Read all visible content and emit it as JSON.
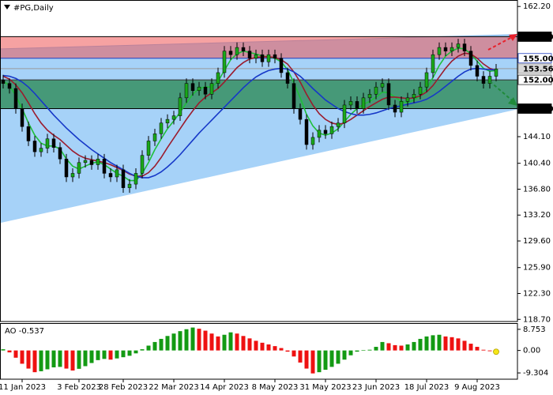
{
  "chart_data": [
    {
      "type": "candlestick",
      "title": "#PG,Daily",
      "categories": [
        null,
        null,
        null,
        "11 Jan 2023",
        null,
        null,
        null,
        null,
        null,
        null,
        null,
        null,
        "3 Feb 2023",
        null,
        null,
        null,
        null,
        null,
        null,
        "28 Feb 2023",
        null,
        null,
        null,
        null,
        null,
        null,
        null,
        "22 Mar 2023",
        null,
        null,
        null,
        null,
        null,
        null,
        null,
        "14 Apr 2023",
        null,
        null,
        null,
        null,
        null,
        null,
        null,
        "8 May 2023",
        null,
        null,
        null,
        null,
        null,
        null,
        null,
        "31 May 2023",
        null,
        null,
        null,
        null,
        null,
        null,
        null,
        "23 Jun 2023",
        null,
        null,
        null,
        null,
        null,
        null,
        null,
        "18 Jul 2023",
        null,
        null,
        null,
        null,
        null,
        null,
        null,
        "9 Aug 2023",
        null,
        null,
        null
      ],
      "open": [
        152.0,
        151.5,
        150.8,
        148.0,
        145.5,
        143.5,
        142.0,
        142.5,
        143.8,
        142.6,
        141.0,
        138.5,
        139.0,
        140.5,
        140.8,
        140.2,
        141.0,
        139.0,
        138.5,
        139.5,
        137.0,
        137.5,
        139.0,
        141.5,
        143.5,
        144.5,
        146.0,
        146.5,
        147.0,
        149.5,
        151.5,
        150.5,
        151.0,
        150.0,
        151.5,
        153.0,
        156.0,
        155.5,
        156.5,
        156.0,
        155.0,
        155.5,
        154.5,
        155.5,
        155.0,
        153.0,
        151.5,
        148.0,
        146.5,
        143.0,
        144.0,
        145.0,
        144.5,
        145.5,
        146.0,
        148.5,
        149.0,
        148.0,
        149.5,
        150.0,
        151.0,
        151.5,
        148.5,
        147.5,
        149.0,
        149.5,
        150.0,
        151.0,
        153.0,
        155.5,
        156.5,
        156.0,
        156.5,
        157.0,
        156.0,
        154.0,
        152.5,
        151.5,
        152.5
      ],
      "high": [
        152.7,
        152.2,
        151.5,
        148.7,
        146.2,
        144.2,
        143.2,
        144.5,
        144.5,
        143.3,
        141.7,
        139.7,
        141.2,
        141.5,
        141.5,
        141.7,
        141.7,
        139.7,
        140.2,
        140.2,
        138.2,
        139.7,
        142.2,
        144.2,
        145.2,
        146.7,
        147.2,
        147.7,
        150.2,
        152.2,
        152.2,
        151.7,
        151.7,
        152.2,
        153.7,
        156.7,
        156.7,
        157.2,
        157.2,
        156.7,
        156.2,
        156.2,
        156.2,
        156.2,
        155.7,
        153.7,
        152.2,
        148.7,
        147.2,
        144.7,
        145.7,
        145.7,
        146.2,
        146.7,
        149.2,
        149.7,
        149.7,
        150.2,
        150.7,
        151.7,
        152.2,
        152.2,
        149.2,
        149.7,
        150.2,
        150.7,
        151.7,
        153.7,
        156.2,
        157.2,
        157.2,
        157.2,
        157.7,
        157.7,
        156.7,
        154.7,
        153.2,
        153.2,
        154.2
      ],
      "low": [
        150.8,
        150.1,
        147.3,
        144.8,
        142.8,
        141.3,
        141.3,
        141.8,
        141.9,
        140.3,
        137.8,
        137.8,
        138.3,
        139.8,
        139.5,
        139.5,
        138.3,
        137.8,
        137.8,
        136.3,
        136.3,
        136.8,
        138.3,
        140.8,
        142.8,
        143.8,
        145.3,
        145.8,
        146.3,
        148.8,
        149.8,
        149.8,
        149.3,
        149.3,
        150.8,
        152.3,
        154.8,
        154.8,
        155.3,
        154.3,
        154.3,
        153.8,
        153.8,
        154.3,
        152.3,
        150.8,
        147.3,
        145.8,
        142.3,
        142.3,
        143.3,
        143.8,
        143.8,
        144.8,
        145.3,
        147.8,
        147.3,
        147.3,
        148.8,
        149.3,
        150.3,
        147.8,
        146.8,
        146.8,
        148.3,
        148.8,
        149.3,
        150.3,
        152.3,
        154.8,
        155.3,
        155.3,
        155.8,
        155.3,
        153.3,
        151.8,
        150.8,
        150.8,
        151.8
      ],
      "close": [
        151.5,
        150.8,
        148.0,
        145.5,
        143.5,
        142.0,
        142.5,
        143.8,
        142.6,
        141.0,
        138.5,
        139.0,
        140.5,
        140.8,
        140.2,
        141.0,
        139.0,
        138.5,
        139.5,
        137.0,
        137.5,
        139.0,
        141.5,
        143.5,
        144.5,
        146.0,
        146.5,
        147.0,
        149.5,
        151.5,
        150.5,
        151.0,
        150.0,
        151.5,
        153.0,
        156.0,
        155.5,
        156.5,
        156.0,
        155.0,
        155.5,
        154.5,
        155.5,
        155.0,
        153.0,
        151.5,
        148.0,
        146.5,
        143.0,
        144.0,
        145.0,
        144.5,
        145.5,
        146.0,
        148.5,
        149.0,
        148.0,
        149.5,
        150.0,
        151.0,
        151.5,
        148.5,
        147.5,
        149.0,
        149.5,
        150.0,
        151.0,
        153.0,
        155.5,
        156.5,
        156.0,
        156.5,
        157.0,
        156.0,
        154.0,
        152.5,
        151.5,
        152.5,
        153.5
      ],
      "up_color": "#1aa81a",
      "down_color": "#000000",
      "series": [
        {
          "color": "#1fbf3a",
          "values": [
            151.8,
            151.2,
            149.8,
            148.0,
            146.0,
            144.3,
            143.2,
            142.8,
            142.8,
            142.4,
            141.0,
            140.0,
            139.6,
            140.0,
            140.4,
            140.6,
            140.2,
            139.6,
            139.0,
            138.6,
            138.0,
            138.0,
            139.0,
            140.5,
            142.3,
            143.8,
            145.2,
            146.3,
            147.5,
            148.8,
            150.0,
            150.8,
            151.0,
            151.0,
            151.8,
            153.3,
            154.8,
            155.6,
            156.0,
            155.8,
            155.6,
            155.3,
            155.2,
            155.0,
            154.5,
            153.4,
            151.6,
            149.5,
            147.2,
            145.6,
            144.6,
            144.3,
            144.6,
            145.2,
            146.2,
            147.2,
            148.0,
            148.6,
            149.0,
            149.6,
            150.3,
            150.2,
            149.6,
            149.0,
            148.8,
            149.2,
            149.8,
            150.8,
            152.3,
            154.0,
            155.3,
            156.0,
            156.4,
            156.3,
            155.6,
            154.6,
            153.6,
            153.2,
            153.3
          ]
        },
        {
          "color": "#9b1c2e",
          "values": [
            152.5,
            152.1,
            151.3,
            150.2,
            148.8,
            147.3,
            146.0,
            145.0,
            144.3,
            143.7,
            142.9,
            142.1,
            141.5,
            141.1,
            140.9,
            140.7,
            140.5,
            140.2,
            139.8,
            139.4,
            138.9,
            138.6,
            138.6,
            139.1,
            140.0,
            141.2,
            142.6,
            143.9,
            145.2,
            146.5,
            147.7,
            148.8,
            149.6,
            150.2,
            150.8,
            151.7,
            152.7,
            153.7,
            154.4,
            154.9,
            155.1,
            155.2,
            155.2,
            155.1,
            154.8,
            154.2,
            153.1,
            151.7,
            150.0,
            148.5,
            147.3,
            146.5,
            146.0,
            145.8,
            146.0,
            146.5,
            147.1,
            147.7,
            148.3,
            148.8,
            149.3,
            149.6,
            149.6,
            149.5,
            149.4,
            149.5,
            149.8,
            150.3,
            151.2,
            152.4,
            153.6,
            154.6,
            155.3,
            155.7,
            155.6,
            155.0,
            154.2,
            153.6,
            153.3
          ]
        },
        {
          "color": "#1638c8",
          "values": [
            152.6,
            152.5,
            152.2,
            151.7,
            151.0,
            150.1,
            149.1,
            148.1,
            147.1,
            146.2,
            145.3,
            144.5,
            143.7,
            143.0,
            142.3,
            141.7,
            141.1,
            140.5,
            140.0,
            139.5,
            139.0,
            138.6,
            138.4,
            138.4,
            138.7,
            139.2,
            139.9,
            140.7,
            141.6,
            142.6,
            143.6,
            144.6,
            145.5,
            146.4,
            147.3,
            148.2,
            149.1,
            150.0,
            150.9,
            151.7,
            152.4,
            152.9,
            153.3,
            153.5,
            153.6,
            153.5,
            153.1,
            152.5,
            151.7,
            150.8,
            150.0,
            149.2,
            148.6,
            148.0,
            147.6,
            147.3,
            147.1,
            147.1,
            147.2,
            147.4,
            147.7,
            148.0,
            148.2,
            148.4,
            148.6,
            148.8,
            149.0,
            149.3,
            149.8,
            150.4,
            151.1,
            151.8,
            152.5,
            153.1,
            153.5,
            153.6,
            153.5,
            153.4,
            153.4
          ]
        }
      ],
      "ylim": [
        118.4,
        163.1
      ],
      "yticks": [
        {
          "value": 162.2,
          "label": "162.20"
        },
        {
          "value": 144.1,
          "label": "144.10"
        },
        {
          "value": 140.4,
          "label": "140.40"
        },
        {
          "value": 136.8,
          "label": "136.80"
        },
        {
          "value": 133.2,
          "label": "133.20"
        },
        {
          "value": 129.6,
          "label": "129.60"
        },
        {
          "value": 125.9,
          "label": "125.90"
        },
        {
          "value": 122.3,
          "label": "122.30"
        },
        {
          "value": 118.7,
          "label": "118.70"
        }
      ],
      "levels": [
        {
          "value": 158,
          "label": "158.00",
          "color": "#000000",
          "text_color": "#ffffff"
        },
        {
          "value": 155,
          "label": "155.00",
          "color": "#1f3fbf",
          "text_color": "#1f3fbf"
        },
        {
          "value": 153.56,
          "label": "153.56",
          "color": "#9a9a9a",
          "text_color": "#000000"
        },
        {
          "value": 152,
          "label": "152.00",
          "color": "#333333",
          "text_color": "#000000"
        },
        {
          "value": 148,
          "label": "148.00",
          "color": "#000000",
          "text_color": "#ffffff"
        }
      ],
      "zones": [
        {
          "from": 155,
          "to": 158,
          "color": "#ee5555"
        },
        {
          "from": 148,
          "to": 152,
          "color": "#2e8b57"
        }
      ],
      "channel": {
        "upper": [
          156.3,
          158.3
        ],
        "lower": [
          132.1,
          147.9
        ],
        "color": "#a6d2f8"
      }
    },
    {
      "type": "bar",
      "title": "AO -0.537",
      "values": [
        0.5,
        -0.8,
        -3.0,
        -5.5,
        -7.5,
        -9.0,
        -8.6,
        -7.8,
        -7.0,
        -6.8,
        -7.5,
        -8.3,
        -7.6,
        -6.5,
        -5.2,
        -4.0,
        -3.5,
        -3.8,
        -3.3,
        -2.8,
        -2.2,
        -1.2,
        0.5,
        2.0,
        3.5,
        4.8,
        6.0,
        7.0,
        8.0,
        8.8,
        9.5,
        9.0,
        8.2,
        7.0,
        5.8,
        6.5,
        7.5,
        7.0,
        6.0,
        5.0,
        4.0,
        3.2,
        2.5,
        1.8,
        1.0,
        -0.5,
        -2.5,
        -5.0,
        -7.5,
        -9.5,
        -9.0,
        -8.0,
        -6.8,
        -5.5,
        -3.8,
        -2.0,
        -0.5,
        0.2,
        0.3,
        1.5,
        3.5,
        3.0,
        2.2,
        2.0,
        2.5,
        3.5,
        4.8,
        5.8,
        6.3,
        6.5,
        5.8,
        5.5,
        5.0,
        4.0,
        2.8,
        1.5,
        0.3,
        -0.3,
        -0.537
      ],
      "up_color": "#139a13",
      "down_color": "#ee1111",
      "ylim": [
        -11.9,
        11.0
      ],
      "yticks": [
        8.753,
        {
          "value": 0,
          "label": "0.00"
        },
        -9.304
      ]
    }
  ]
}
